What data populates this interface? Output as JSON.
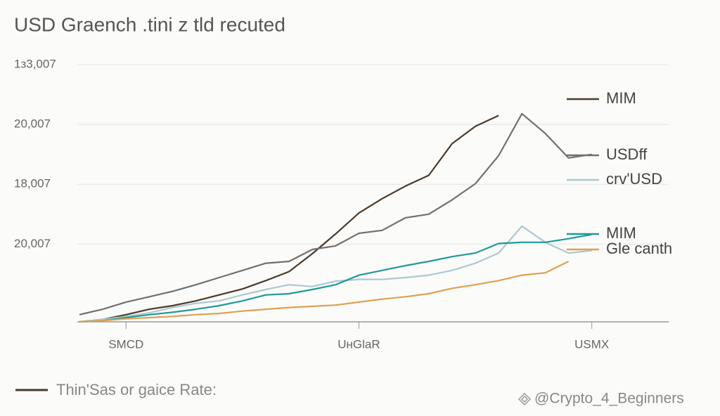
{
  "chart_data": {
    "type": "line",
    "title": "USD Graench .tini z tld recuted",
    "x": [
      0,
      1,
      2,
      3,
      4,
      5,
      6,
      7,
      8,
      9,
      10,
      11,
      12,
      13,
      14,
      15,
      16,
      17,
      18,
      19,
      20,
      21,
      22
    ],
    "xlim": [
      0,
      25.3
    ],
    "xticks": [
      {
        "value": 2,
        "label": "SMCD"
      },
      {
        "value": 12,
        "label": "UʜGlaR"
      },
      {
        "value": 22,
        "label": "USMX"
      }
    ],
    "ylim": [
      -0.3,
      4.2
    ],
    "yticks": [
      {
        "value": 1,
        "label": "20,007"
      },
      {
        "value": 2,
        "label": "18,007"
      },
      {
        "value": 3,
        "label": "20,007"
      },
      {
        "value": 4,
        "label": "1з3,007"
      }
    ],
    "grid": true,
    "series": [
      {
        "name": "MIM",
        "color": "#4a3a2a",
        "values": [
          -0.3,
          -0.26,
          -0.18,
          -0.09,
          -0.03,
          0.05,
          0.15,
          0.25,
          0.39,
          0.54,
          0.84,
          1.17,
          1.52,
          1.76,
          1.97,
          2.15,
          2.68,
          2.97,
          3.15,
          null,
          null,
          null,
          null
        ]
      },
      {
        "name": "USDff",
        "color": "#707070",
        "values": [
          -0.18,
          -0.09,
          0.03,
          0.12,
          0.21,
          0.32,
          0.44,
          0.56,
          0.68,
          0.71,
          0.91,
          0.97,
          1.18,
          1.23,
          1.44,
          1.5,
          1.74,
          2.01,
          2.48,
          3.18,
          2.85,
          2.44,
          2.5
        ]
      },
      {
        "name": "crv'USD",
        "color": "#abc9d1",
        "values": [
          -0.3,
          -0.26,
          -0.21,
          -0.15,
          -0.06,
          0.01,
          0.05,
          0.15,
          0.24,
          0.32,
          0.29,
          0.38,
          0.41,
          0.41,
          0.44,
          0.48,
          0.56,
          0.68,
          0.85,
          1.3,
          1.03,
          0.85,
          0.89
        ]
      },
      {
        "name": "MIM",
        "color": "#1f9a9a",
        "values": [
          -0.3,
          -0.28,
          -0.23,
          -0.18,
          -0.14,
          -0.09,
          -0.03,
          0.05,
          0.15,
          0.17,
          0.24,
          0.32,
          0.48,
          0.56,
          0.64,
          0.71,
          0.79,
          0.85,
          1.01,
          1.03,
          1.03,
          1.09,
          1.16
        ]
      },
      {
        "name": "Gle canth",
        "color": "#e0a050",
        "values": [
          -0.3,
          -0.28,
          -0.25,
          -0.23,
          -0.21,
          -0.18,
          -0.16,
          -0.12,
          -0.09,
          -0.06,
          -0.04,
          -0.02,
          0.03,
          0.08,
          0.12,
          0.17,
          0.26,
          0.32,
          0.39,
          0.48,
          0.52,
          0.71,
          null
        ]
      }
    ],
    "footer_legend": "Thin'Sas or gaice Rate:",
    "watermark": "@Crypto_4_Beginners"
  }
}
